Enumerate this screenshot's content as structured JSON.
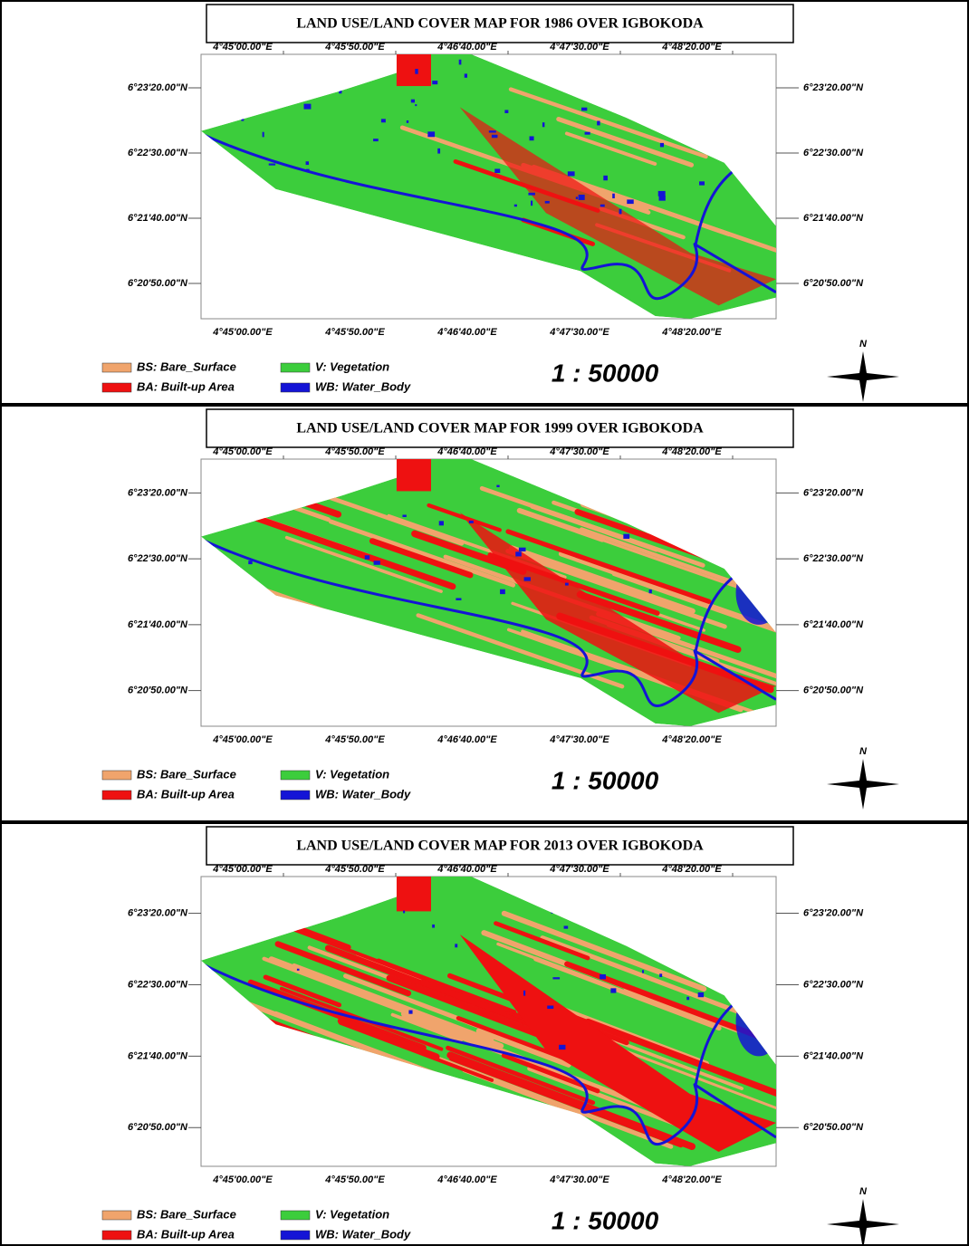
{
  "panels": [
    {
      "title": "LAND USE/LAND COVER MAP FOR 1986 OVER IGBOKODA",
      "lon_labels": [
        "4°45'00.00\"E",
        "4°45'50.00\"E",
        "4°46'40.00\"E",
        "4°47'30.00\"E",
        "4°48'20.00\"E"
      ],
      "lat_labels": [
        "6°23'20.00\"N",
        "6°22'30.00\"N",
        "6°21'40.00\"N",
        "6°20'50.00\"N"
      ],
      "legend": [
        "BS: Bare_Surface",
        "BA: Built-up Area",
        "V: Vegetation",
        "WB: Water_Body"
      ],
      "scale": "1 : 50000",
      "north": "N"
    },
    {
      "title": "LAND USE/LAND COVER MAP FOR 1999 OVER IGBOKODA",
      "lon_labels": [
        "4°45'00.00\"E",
        "4°45'50.00\"E",
        "4°46'40.00\"E",
        "4°47'30.00\"E",
        "4°48'20.00\"E"
      ],
      "lat_labels": [
        "6°23'20.00\"N",
        "6°22'30.00\"N",
        "6°21'40.00\"N",
        "6°20'50.00\"N"
      ],
      "legend": [
        "BS: Bare_Surface",
        "BA: Built-up Area",
        "V: Vegetation",
        "WB: Water_Body"
      ],
      "scale": "1 : 50000",
      "north": "N"
    },
    {
      "title": "LAND USE/LAND COVER MAP FOR 2013 OVER IGBOKODA",
      "lon_labels": [
        "4°45'00.00\"E",
        "4°45'50.00\"E",
        "4°46'40.00\"E",
        "4°47'30.00\"E",
        "4°48'20.00\"E"
      ],
      "lat_labels": [
        "6°23'20.00\"N",
        "6°22'30.00\"N",
        "6°21'40.00\"N",
        "6°20'50.00\"N"
      ],
      "legend": [
        "BS: Bare_Surface",
        "BA: Built-up Area",
        "V: Vegetation",
        "WB: Water_Body"
      ],
      "scale": "1 : 50000",
      "north": "N"
    }
  ]
}
